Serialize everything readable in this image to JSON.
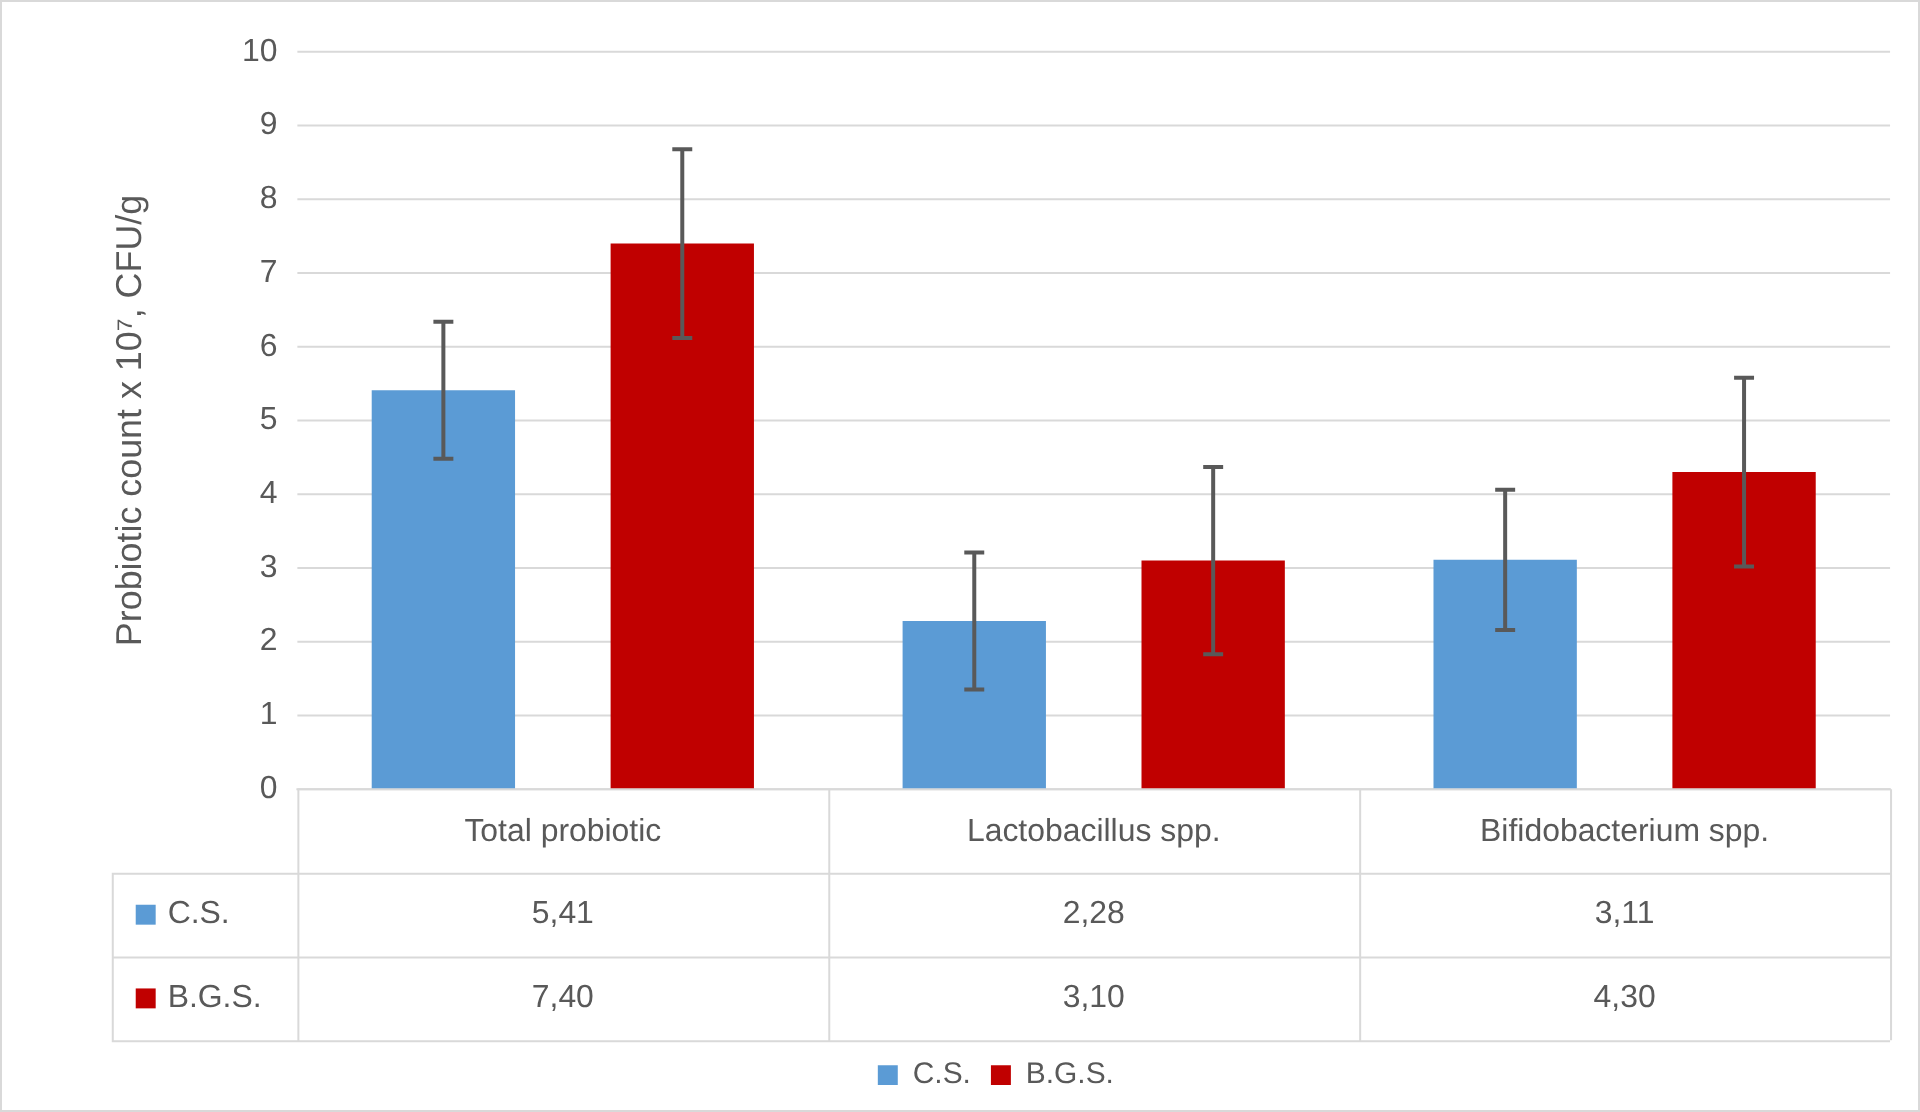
{
  "chart_data": {
    "type": "bar",
    "ylabel": "Probiotic count x 10⁷, CFU/g",
    "categories": [
      "Total probiotic",
      "Lactobacillus spp.",
      "Bifidobacterium spp."
    ],
    "series": [
      {
        "name": "C.S.",
        "color": "#5b9bd5",
        "values": [
          5.41,
          2.28,
          3.11
        ],
        "errors": [
          0.93,
          0.93,
          0.95
        ],
        "value_labels": [
          "5,41",
          "2,28",
          "3,11"
        ]
      },
      {
        "name": "B.G.S.",
        "color": "#c00000",
        "values": [
          7.4,
          3.1,
          4.3
        ],
        "errors": [
          1.28,
          1.27,
          1.28
        ],
        "value_labels": [
          "7,40",
          "3,10",
          "4,30"
        ]
      }
    ],
    "ylim": [
      0,
      10
    ],
    "yticks": [
      0,
      1,
      2,
      3,
      4,
      5,
      6,
      7,
      8,
      9,
      10
    ],
    "grid": "y",
    "legend": "bottom"
  }
}
